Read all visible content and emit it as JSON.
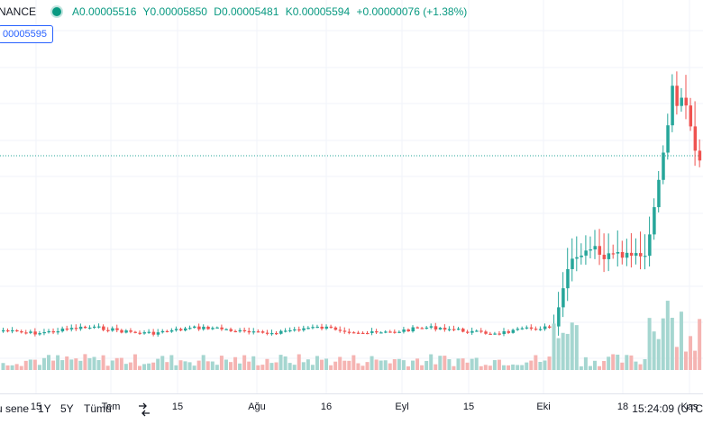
{
  "legend": {
    "symbol": "NANCE",
    "open": "A0.00005516",
    "high": "Y0.00005850",
    "low": "D0.00005481",
    "close": "K0.00005594",
    "change": "+0.00000076 (+1.38%)"
  },
  "price_tag": "00005595",
  "time_axis": {
    "labels": [
      "15",
      "Tem",
      "15",
      "Ağu",
      "16",
      "Eyl",
      "15",
      "Eki",
      "18",
      "Kas"
    ]
  },
  "bottom_bar": {
    "range_partial": "u sene",
    "range_1y": "1Y",
    "range_5y": "5Y",
    "range_all": "Tümü",
    "clock": "15:24:09 (UTC"
  },
  "colors": {
    "up": "#26a69a",
    "down": "#ef5350",
    "up_volume": "#a5d6d0",
    "down_volume": "#f5b4b2",
    "last_price_line": "#26a69a",
    "accent": "#2962ff"
  },
  "icons": [
    "live-dot-icon",
    "compare-icon"
  ]
}
